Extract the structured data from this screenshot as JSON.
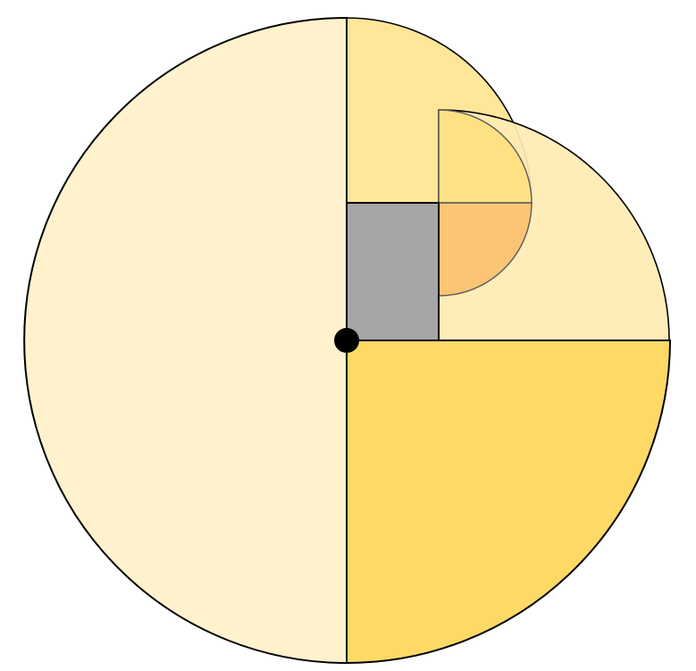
{
  "diagram": {
    "kind": "geometric construction",
    "description_visible_text": "",
    "colors": {
      "large_semicircle": "#FFF2CC",
      "upper_quarter": "#FFE699",
      "lower_right_quarter": "#FFD966",
      "right_quarter": "#FFECB3",
      "grey_square": "#A6A6A6",
      "small_quarter_light": "#FFE080",
      "small_quarter_orange": "#FBC575",
      "center_point": "#000000",
      "outline": "#000000"
    }
  }
}
